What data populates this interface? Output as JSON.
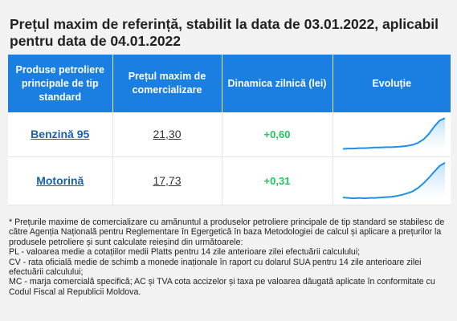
{
  "title": "Prețul maxim de referință, stabilit la data de 03.01.2022, aplicabil pentru data de 04.01.2022",
  "table": {
    "headers": {
      "product": "Produse petroliere principale de tip standard",
      "price": "Prețul maxim de comercializare",
      "change": "Dinamica zilnică (lei)",
      "trend": "Evoluție"
    },
    "rows": [
      {
        "product": "Benzină 95",
        "price": "21,30",
        "change": "+0,60",
        "trend": [
          0.06,
          0.07,
          0.07,
          0.08,
          0.08,
          0.09,
          0.1,
          0.1,
          0.11,
          0.11,
          0.12,
          0.13,
          0.15,
          0.18,
          0.24,
          0.34,
          0.5,
          0.72,
          0.9,
          0.97
        ]
      },
      {
        "product": "Motorină",
        "price": "17,73",
        "change": "+0,31",
        "trend": [
          0.06,
          0.05,
          0.04,
          0.05,
          0.04,
          0.05,
          0.05,
          0.06,
          0.07,
          0.08,
          0.1,
          0.13,
          0.17,
          0.22,
          0.31,
          0.43,
          0.57,
          0.73,
          0.88,
          0.96
        ]
      }
    ]
  },
  "colors": {
    "header_bg": "#1a7fe0",
    "positive": "#22c55e",
    "link": "#1a5fb0",
    "spark_line": "#1e90e8",
    "spark_fill": "#bfe0fb"
  },
  "notes": [
    "* Prețurile maxime de comercializare cu amănuntul a produselor petroliere principale de tip standard se stabilesc de către Agenția Națională pentru Reglementare în Egergetică în baza Metodologiei de calcul și aplicare a prețurilor la produsele petroliere și sunt calculate reieșind din următoarele:",
    "PL - valoarea medie a cotațiilor medii Platts pentru 14 zile anterioare zilei efectuării calculului;",
    "CV - rata oficială medie de schimb a monede inaționale în raport cu dolarul SUA pentru 14 zile anterioare zilei efectuării calculului;",
    "MC - marja comercială specifică; AC și TVA cota accizelor și taxa pe valoarea dăugată aplicate în conformitate cu Codul Fiscal al Republicii Moldova."
  ]
}
